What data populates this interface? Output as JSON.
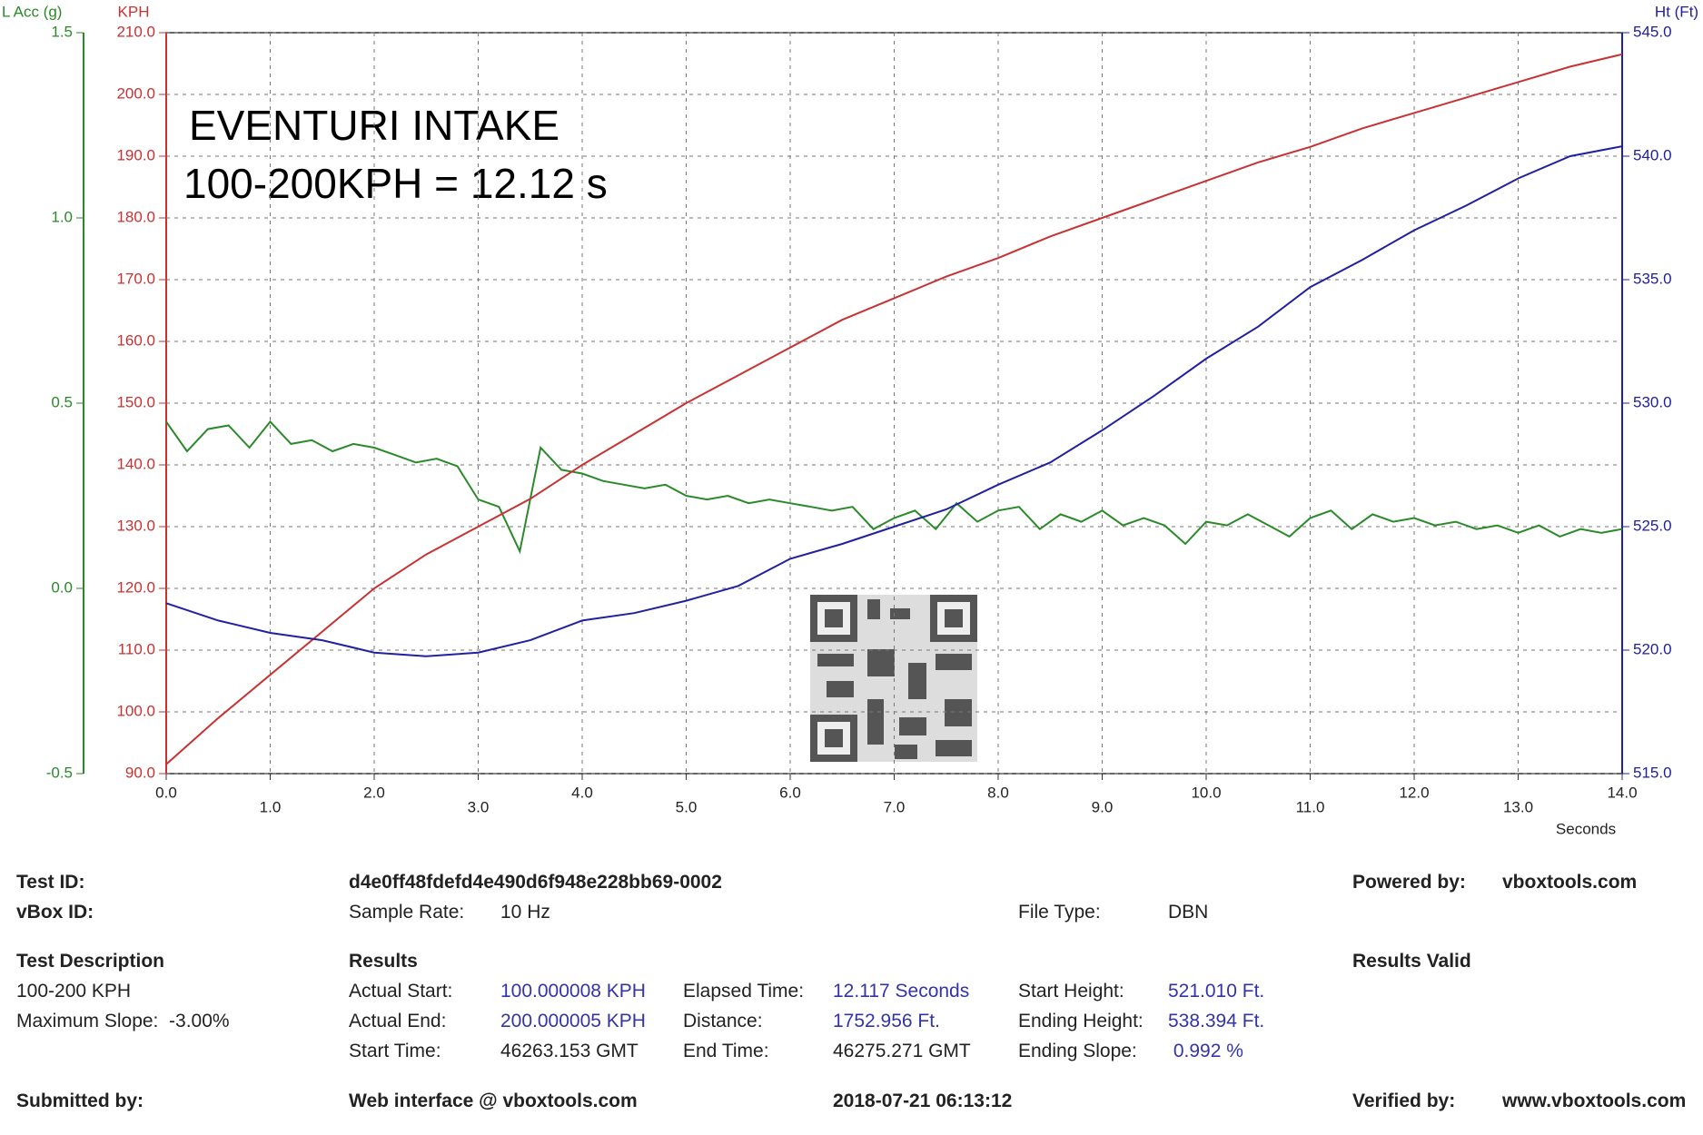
{
  "chart_data": {
    "type": "line",
    "annotations": [
      "EVENTURI INTAKE",
      "100-200KPH = 12.12 s"
    ],
    "xlabel": "Seconds",
    "xlim": [
      0,
      14
    ],
    "xticks": [
      {
        "value": 0,
        "label": "0.0"
      },
      {
        "value": 1,
        "label": "1.0"
      },
      {
        "value": 2,
        "label": "2.0"
      },
      {
        "value": 3,
        "label": "3.0"
      },
      {
        "value": 4,
        "label": "4.0"
      },
      {
        "value": 5,
        "label": "5.0"
      },
      {
        "value": 6,
        "label": "6.0"
      },
      {
        "value": 7,
        "label": "7.0"
      },
      {
        "value": 8,
        "label": "8.0"
      },
      {
        "value": 9,
        "label": "9.0"
      },
      {
        "value": 10,
        "label": "10.0"
      },
      {
        "value": 11,
        "label": "11.0"
      },
      {
        "value": 12,
        "label": "12.0"
      },
      {
        "value": 13,
        "label": "13.0"
      },
      {
        "value": 14,
        "label": "14.0"
      }
    ],
    "grid": true,
    "axes": [
      {
        "title": "L Acc (g)",
        "color": "#2a8a2a",
        "lim": [
          -0.5,
          1.5
        ],
        "ticks": [
          -0.5,
          {
            "value": 0,
            "label": "0.0"
          },
          0.5,
          {
            "value": 1,
            "label": "1.0"
          },
          {
            "value": 1.5,
            "label": "1.5"
          }
        ]
      },
      {
        "title": "KPH",
        "color": "#c83232",
        "lim": [
          90,
          210
        ],
        "ticks": [
          {
            "value": 90,
            "label": "90.0"
          },
          {
            "value": 100,
            "label": "100.0"
          },
          {
            "value": 110,
            "label": "110.0"
          },
          {
            "value": 120,
            "label": "120.0"
          },
          {
            "value": 130,
            "label": "130.0"
          },
          {
            "value": 140,
            "label": "140.0"
          },
          {
            "value": 150,
            "label": "150.0"
          },
          {
            "value": 160,
            "label": "160.0"
          },
          {
            "value": 170,
            "label": "170.0"
          },
          {
            "value": 180,
            "label": "180.0"
          },
          {
            "value": 190,
            "label": "190.0"
          },
          {
            "value": 200,
            "label": "200.0"
          },
          {
            "value": 210,
            "label": "210.0"
          }
        ]
      },
      {
        "title": "Ht (Ft)",
        "color": "#2020a0",
        "lim": [
          515,
          545
        ],
        "ticks": [
          {
            "value": 515,
            "label": "515.0"
          },
          {
            "value": 520,
            "label": "520.0"
          },
          {
            "value": 525,
            "label": "525.0"
          },
          {
            "value": 530,
            "label": "530.0"
          },
          {
            "value": 535,
            "label": "535.0"
          },
          {
            "value": 540,
            "label": "540.0"
          },
          {
            "value": 545,
            "label": "545.0"
          }
        ]
      }
    ],
    "series": [
      {
        "name": "L Acc (g)",
        "axis": 0,
        "color": "#2a8a2a",
        "x": [
          0,
          0.2,
          0.4,
          0.6,
          0.8,
          1,
          1.2,
          1.4,
          1.6,
          1.8,
          2,
          2.2,
          2.4,
          2.6,
          2.8,
          3,
          3.2,
          3.4,
          3.6,
          3.8,
          4,
          4.2,
          4.4,
          4.6,
          4.8,
          5,
          5.2,
          5.4,
          5.6,
          5.8,
          6,
          6.2,
          6.4,
          6.6,
          6.8,
          7,
          7.2,
          7.4,
          7.6,
          7.8,
          8,
          8.2,
          8.4,
          8.6,
          8.8,
          9,
          9.2,
          9.4,
          9.6,
          9.8,
          10,
          10.2,
          10.4,
          10.6,
          10.8,
          11,
          11.2,
          11.4,
          11.6,
          11.8,
          12,
          12.2,
          12.4,
          12.6,
          12.8,
          13,
          13.2,
          13.4,
          13.6,
          13.8,
          14
        ],
        "values": [
          0.45,
          0.37,
          0.43,
          0.44,
          0.38,
          0.45,
          0.39,
          0.4,
          0.37,
          0.39,
          0.38,
          0.36,
          0.34,
          0.35,
          0.33,
          0.24,
          0.22,
          0.1,
          0.38,
          0.32,
          0.31,
          0.29,
          0.28,
          0.27,
          0.28,
          0.25,
          0.24,
          0.25,
          0.23,
          0.24,
          0.23,
          0.22,
          0.21,
          0.22,
          0.16,
          0.19,
          0.21,
          0.16,
          0.23,
          0.18,
          0.21,
          0.22,
          0.16,
          0.2,
          0.18,
          0.21,
          0.17,
          0.19,
          0.17,
          0.12,
          0.18,
          0.17,
          0.2,
          0.17,
          0.14,
          0.19,
          0.21,
          0.16,
          0.2,
          0.18,
          0.19,
          0.17,
          0.18,
          0.16,
          0.17,
          0.15,
          0.17,
          0.14,
          0.16,
          0.15,
          0.16
        ]
      },
      {
        "name": "KPH",
        "axis": 1,
        "color": "#c83232",
        "x": [
          0,
          0.5,
          1,
          1.5,
          2,
          2.5,
          3,
          3.5,
          4,
          4.5,
          5,
          5.5,
          6,
          6.5,
          7,
          7.5,
          8,
          8.5,
          9,
          9.5,
          10,
          10.5,
          11,
          11.5,
          12,
          12.5,
          13,
          13.5,
          14
        ],
        "values": [
          91.5,
          99,
          106,
          113,
          120,
          125.5,
          130,
          134.5,
          140,
          145,
          150,
          154.5,
          159,
          163.5,
          167,
          170.5,
          173.5,
          177,
          180,
          183,
          186,
          189,
          191.5,
          194.5,
          197,
          199.5,
          202,
          204.5,
          206.5
        ]
      },
      {
        "name": "Ht (Ft)",
        "axis": 2,
        "color": "#2020a0",
        "x": [
          0,
          0.5,
          1,
          1.5,
          2,
          2.5,
          3,
          3.5,
          4,
          4.5,
          5,
          5.5,
          6,
          6.5,
          7,
          7.5,
          8,
          8.5,
          9,
          9.5,
          10,
          10.5,
          11,
          11.5,
          12,
          12.5,
          13,
          13.5,
          14
        ],
        "values": [
          521.9,
          521.2,
          520.7,
          520.4,
          519.9,
          519.75,
          519.9,
          520.4,
          521.2,
          521.5,
          522.0,
          522.6,
          523.7,
          524.3,
          525.0,
          525.7,
          526.7,
          527.6,
          528.9,
          530.3,
          531.8,
          533.1,
          534.7,
          535.8,
          537.0,
          538.0,
          539.1,
          540.0,
          540.4
        ]
      }
    ]
  },
  "report": {
    "test_id_label": "Test ID:",
    "test_id": "d4e0ff48fdefd4e490d6f948e228bb69-0002",
    "powered_by_label": "Powered by:",
    "powered_by": "vboxtools.com",
    "vbox_id_label": "vBox ID:",
    "sample_rate_label": "Sample Rate:",
    "sample_rate": "10 Hz",
    "file_type_label": "File Type:",
    "file_type": "DBN",
    "test_description_label": "Test Description",
    "test_description": "100-200 KPH",
    "max_slope": "Maximum Slope:  -3.00%",
    "results_label": "Results",
    "results_valid": "Results Valid",
    "actual_start_label": "Actual Start:",
    "actual_start": "100.000008 KPH",
    "elapsed_label": "Elapsed Time:",
    "elapsed": "12.117 Seconds",
    "start_height_label": "Start Height:",
    "start_height": "521.010 Ft.",
    "actual_end_label": "Actual End:",
    "actual_end": "200.000005 KPH",
    "distance_label": "Distance:",
    "distance": "1752.956 Ft.",
    "ending_height_label": "Ending Height:",
    "ending_height": "538.394 Ft.",
    "start_time_label": "Start Time:",
    "start_time": "46263.153 GMT",
    "end_time_label": "End Time:",
    "end_time": "46275.271 GMT",
    "ending_slope_label": "Ending Slope:",
    "ending_slope": " 0.992 %",
    "submitted_label": "Submitted by:",
    "web_interface": "Web interface @ vboxtools.com",
    "timestamp": "2018-07-21 06:13:12",
    "verified_label": "Verified by:",
    "verified": "www.vboxtools.com"
  }
}
